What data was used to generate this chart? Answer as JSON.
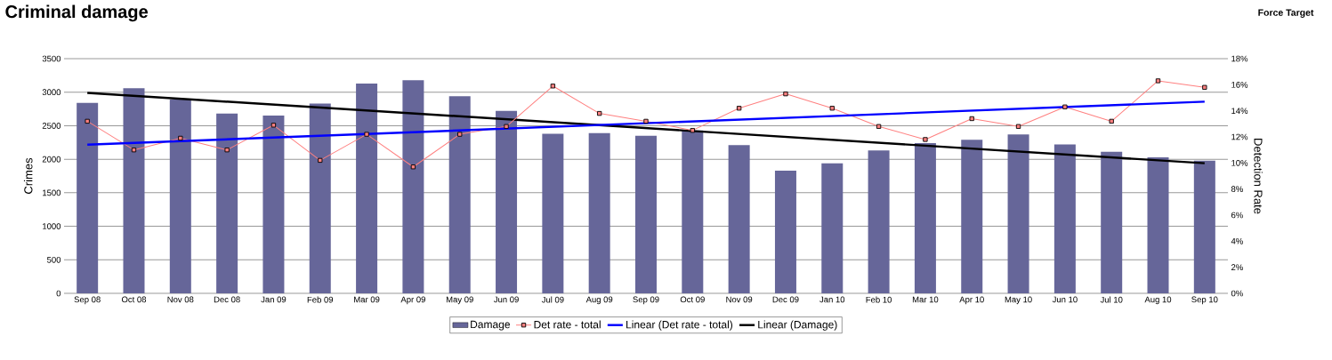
{
  "chart_data": {
    "type": "bar",
    "title": "Criminal damage",
    "annotations": [
      "Force Target"
    ],
    "ylabel": "Crimes",
    "y2label": "Detection Rate",
    "categories": [
      "Sep 08",
      "Oct 08",
      "Nov 08",
      "Dec 08",
      "Jan 09",
      "Feb 09",
      "Mar 09",
      "Apr 09",
      "May 09",
      "Jun 09",
      "Jul 09",
      "Aug 09",
      "Sep 09",
      "Oct 09",
      "Nov 09",
      "Dec 09",
      "Jan 10",
      "Feb 10",
      "Mar 10",
      "Apr 10",
      "May 10",
      "Jun 10",
      "Jul 10",
      "Aug 10",
      "Sep 10"
    ],
    "ylim": [
      0,
      3500
    ],
    "yticks": [
      0,
      500,
      1000,
      1500,
      2000,
      2500,
      3000,
      3500
    ],
    "y2lim": [
      0,
      18
    ],
    "y2ticks": [
      {
        "value": 0,
        "label": "0%"
      },
      {
        "value": 2,
        "label": "2%"
      },
      {
        "value": 4,
        "label": "4%"
      },
      {
        "value": 6,
        "label": "6%"
      },
      {
        "value": 8,
        "label": "8%"
      },
      {
        "value": 10,
        "label": "10%"
      },
      {
        "value": 12,
        "label": "12%"
      },
      {
        "value": 14,
        "label": "14%"
      },
      {
        "value": 16,
        "label": "16%"
      },
      {
        "value": 18,
        "label": "18%"
      }
    ],
    "grid": "y",
    "legend": "bottom",
    "series": [
      {
        "name": "Damage",
        "color": "#666699",
        "values": [
          2840,
          3060,
          2890,
          2680,
          2650,
          2830,
          3130,
          3180,
          2940,
          2720,
          2380,
          2390,
          2350,
          2430,
          2210,
          1830,
          1940,
          2130,
          2240,
          2290,
          2370,
          2220,
          2110,
          2030,
          1980
        ]
      },
      {
        "name": "Det rate - total",
        "type": "line",
        "axis": "y2",
        "color": "#ff8080",
        "marker": "square",
        "values": [
          13.2,
          11.0,
          11.9,
          11.0,
          12.9,
          10.2,
          12.2,
          9.7,
          12.2,
          12.8,
          15.9,
          13.8,
          13.2,
          12.5,
          14.2,
          15.3,
          14.2,
          12.8,
          11.8,
          13.4,
          12.8,
          14.3,
          13.2,
          16.3,
          15.8
        ]
      },
      {
        "name": "Linear (Det rate - total)",
        "type": "line",
        "axis": "y2",
        "color": "#0000ff",
        "marker": "none",
        "x": [
          "Sep 08",
          "Sep 10"
        ],
        "values": [
          11.4,
          14.7
        ]
      },
      {
        "name": "Linear (Damage)",
        "type": "line",
        "color": "#000000",
        "marker": "none",
        "x": [
          "Sep 08",
          "Sep 10"
        ],
        "values": [
          2990,
          1940
        ]
      }
    ]
  }
}
